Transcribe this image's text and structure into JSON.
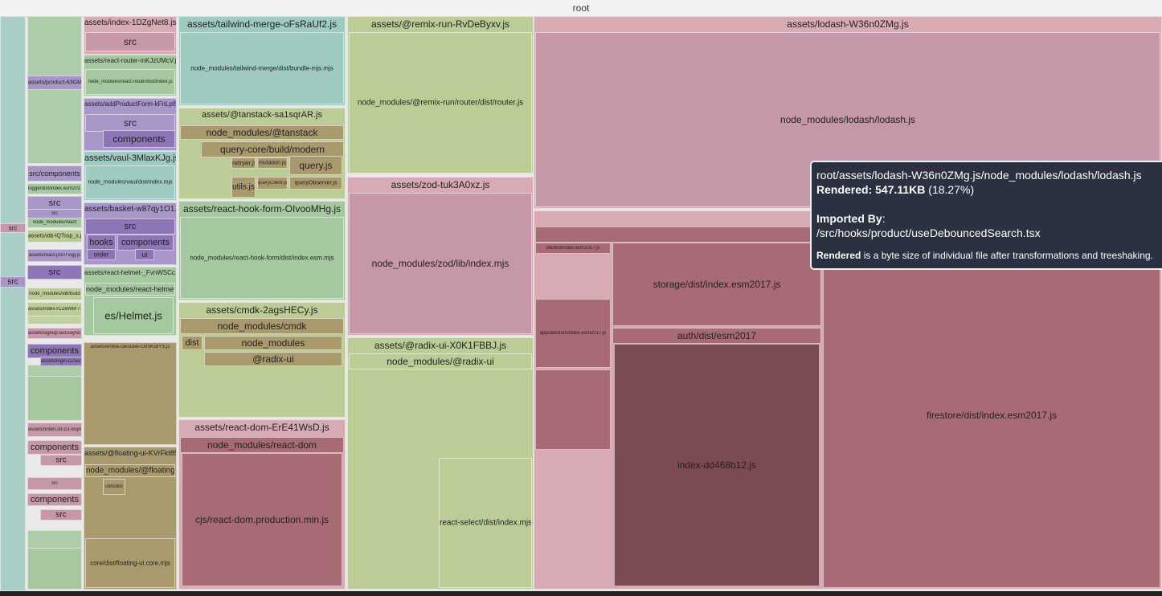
{
  "root_label": "root",
  "colors": {
    "green": "#a6c8a0",
    "teal": "#9fcac2",
    "olive": "#bccc96",
    "mauve": "#c597a9",
    "lavender": "#a996c8",
    "purple": "#8e75b5",
    "rose": "#a86a74",
    "darkrose": "#7c4a52",
    "khaki": "#a99a6e",
    "pink": "#d7aab4"
  },
  "nodes": [
    {
      "label": "assets/index-1DZgNet8.js"
    },
    {
      "label": "src"
    },
    {
      "label": "assets/react-router-mKJzUMcV.js"
    },
    {
      "label": "node_modules/react-router/dist/index.js"
    },
    {
      "label": "assets/addProductForm-kFnLpl5q.js"
    },
    {
      "label": "src"
    },
    {
      "label": "components"
    },
    {
      "label": "assets/vaul-3MlaxKJg.js"
    },
    {
      "label": "node_modules/vaul/dist/index.mjs"
    },
    {
      "label": "assets/basket-w87qy1O1.js"
    },
    {
      "label": "src"
    },
    {
      "label": "hooks"
    },
    {
      "label": "components"
    },
    {
      "label": "order"
    },
    {
      "label": "ui"
    },
    {
      "label": "assets/react-helmet-_FvnWSCc.js"
    },
    {
      "label": "node_modules/react-helmet"
    },
    {
      "label": "es/Helmet.js"
    },
    {
      "label": "assets/embla-carousel-CkmKs8YS.js"
    },
    {
      "label": "assets/@floating-ui-KVrFkt85.js"
    },
    {
      "label": "node_modules/@floating-ui"
    },
    {
      "label": "utils/dist"
    },
    {
      "label": "core/dist/floating-ui.core.mjs"
    },
    {
      "label": "assets/tailwind-merge-oFsRaUf2.js"
    },
    {
      "label": "node_modules/tailwind-merge/dist/bundle-mjs.mjs"
    },
    {
      "label": "assets/@tanstack-sa1sqrAR.js"
    },
    {
      "label": "node_modules/@tanstack"
    },
    {
      "label": "query-core/build/modern"
    },
    {
      "label": "retryer.js"
    },
    {
      "label": "mutation.js"
    },
    {
      "label": "query.js"
    },
    {
      "label": "utils.js"
    },
    {
      "label": "queryClient.js"
    },
    {
      "label": "queryObserver.js"
    },
    {
      "label": "assets/react-hook-form-OIvooMHg.js"
    },
    {
      "label": "node_modules/react-hook-form/dist/index.esm.mjs"
    },
    {
      "label": "assets/cmdk-2agsHECy.js"
    },
    {
      "label": "node_modules/cmdk"
    },
    {
      "label": "dist"
    },
    {
      "label": "node_modules"
    },
    {
      "label": "@radix-ui"
    },
    {
      "label": "assets/react-dom-ErE41WsD.js"
    },
    {
      "label": "node_modules/react-dom"
    },
    {
      "label": "cjs/react-dom.production.min.js"
    },
    {
      "label": "assets/@remix-run-RvDeByxv.js"
    },
    {
      "label": "node_modules/@remix-run/router/dist/router.js"
    },
    {
      "label": "assets/zod-tuk3A0xz.js"
    },
    {
      "label": "node_modules/zod/lib/index.mjs"
    },
    {
      "label": "assets/@radix-ui-X0K1FBBJ.js"
    },
    {
      "label": "node_modules/@radix-ui"
    },
    {
      "label": "react-select/dist/index.mjs"
    },
    {
      "label": "assets/lodash-W36n0ZMg.js"
    },
    {
      "label": "node_modules/lodash/lodash.js"
    },
    {
      "label": "assets"
    },
    {
      "label": "node"
    },
    {
      "label": "storage/dist/index.esm2017.js"
    },
    {
      "label": "auth/dist/esm2017"
    },
    {
      "label": "index-dd468b12.js"
    },
    {
      "label": "firestore/dist/index.esm2017.js"
    },
    {
      "label": "src/components"
    },
    {
      "label": "src"
    },
    {
      "label": "src"
    },
    {
      "label": "src"
    },
    {
      "label": "src"
    },
    {
      "label": "components"
    },
    {
      "label": "src"
    },
    {
      "label": "components"
    },
    {
      "label": "src"
    },
    {
      "label": "components"
    },
    {
      "label": "assets/login-DZwZ2qkx.js"
    },
    {
      "label": "assets/product-63GMKtM.js"
    },
    {
      "label": "assets/react-jzx0Tvqg.js"
    },
    {
      "label": "node_modules/react"
    },
    {
      "label": "assets/idb-lQTssp_s.js"
    },
    {
      "label": "node_modules/idb/build"
    },
    {
      "label": "assets/index-rCZ6WbF7.js"
    },
    {
      "label": "assets/signup-ax15oySc.js"
    },
    {
      "label": "assets/orderList-D1-Bsp9.js"
    },
    {
      "label": "src"
    },
    {
      "label": "src"
    },
    {
      "label": "loggerdist/index.esm2017.js"
    },
    {
      "label": "util/dist/index.esm2017.js"
    },
    {
      "label": "app/dist/esm/index.esm2017.js"
    }
  ],
  "tooltip": {
    "path": "root/assets/lodash-W36n0ZMg.js/node_modules/lodash/lodash.js",
    "rendered_label": "Rendered:",
    "rendered_value": "547.11KB",
    "rendered_pct": "(18.27%)",
    "imported_by_label": "Imported By",
    "imported_by_value": "/src/hooks/product/useDebouncedSearch.tsx",
    "note_bold": "Rendered",
    "note_rest": "is a byte size of individual file after transformations and treeshaking."
  }
}
